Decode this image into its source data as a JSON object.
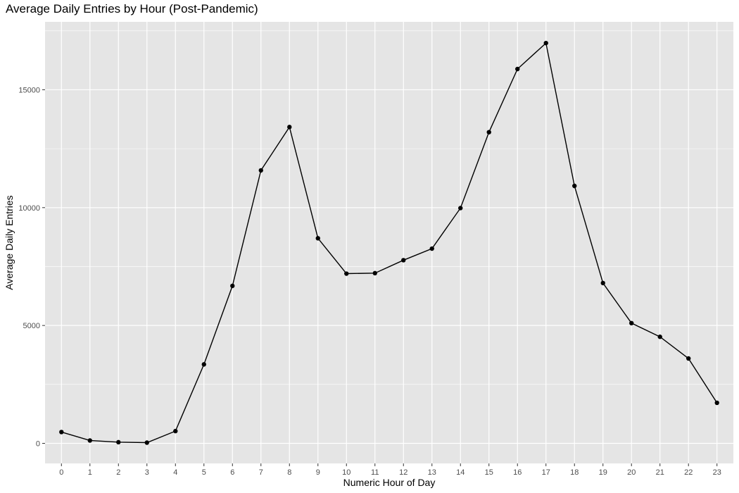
{
  "chart_data": {
    "type": "line",
    "title": "Average Daily Entries by Hour (Post-Pandemic)",
    "xlabel": "Numeric Hour of Day",
    "ylabel": "Average Daily Entries",
    "x": [
      0,
      1,
      2,
      3,
      4,
      5,
      6,
      7,
      8,
      9,
      10,
      11,
      12,
      13,
      14,
      15,
      16,
      17,
      18,
      19,
      20,
      21,
      22,
      23
    ],
    "y": [
      480,
      120,
      50,
      30,
      520,
      3350,
      6680,
      11580,
      13420,
      8700,
      7200,
      7220,
      7770,
      8260,
      9980,
      13200,
      15880,
      16980,
      10920,
      6800,
      5100,
      4520,
      3600,
      1720
    ],
    "xlim": [
      -0.575,
      23.575
    ],
    "ylim": [
      -851.5,
      17881.5
    ],
    "yticks": [
      0,
      5000,
      10000,
      15000
    ],
    "ytick_labels": [
      "0",
      "5000",
      "10000",
      "15000"
    ],
    "xtick_labels": [
      "0",
      "1",
      "2",
      "3",
      "4",
      "5",
      "6",
      "7",
      "8",
      "9",
      "10",
      "11",
      "12",
      "13",
      "14",
      "15",
      "16",
      "17",
      "18",
      "19",
      "20",
      "21",
      "22",
      "23"
    ],
    "grid": true,
    "panel_color": "#e5e5e5",
    "grid_color": "#ffffff",
    "line_color": "#000000",
    "point_color": "#000000"
  }
}
